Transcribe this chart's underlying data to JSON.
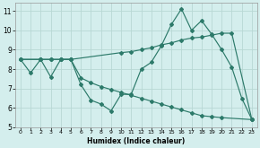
{
  "xlabel": "Humidex (Indice chaleur)",
  "bg_color": "#d4eeed",
  "grid_color": "#b8d8d4",
  "line_color": "#2d7a6a",
  "xlim": [
    -0.5,
    23.5
  ],
  "ylim": [
    5,
    11.4
  ],
  "xticks": [
    0,
    1,
    2,
    3,
    4,
    5,
    6,
    7,
    8,
    9,
    10,
    11,
    12,
    13,
    14,
    15,
    16,
    17,
    18,
    19,
    20,
    21,
    22,
    23
  ],
  "yticks": [
    5,
    6,
    7,
    8,
    9,
    10,
    11
  ],
  "line1_x": [
    0,
    1,
    2,
    3,
    4,
    5,
    6,
    7,
    8,
    9,
    10,
    11,
    12,
    13,
    14,
    15,
    16,
    17,
    18,
    19,
    20,
    21,
    22,
    23
  ],
  "line1_y": [
    8.5,
    7.8,
    8.5,
    7.6,
    8.5,
    8.5,
    7.2,
    6.4,
    6.2,
    5.85,
    6.7,
    6.7,
    8.0,
    8.35,
    9.2,
    10.3,
    11.1,
    10.0,
    10.5,
    9.8,
    9.0,
    8.1,
    6.5,
    5.4
  ],
  "line2_x": [
    0,
    2,
    3,
    4,
    5,
    10,
    11,
    12,
    13,
    14,
    15,
    16,
    17,
    18,
    19,
    20,
    21,
    23
  ],
  "line2_y": [
    8.5,
    8.5,
    8.5,
    8.5,
    8.5,
    8.85,
    8.9,
    9.0,
    9.1,
    9.25,
    9.35,
    9.5,
    9.6,
    9.65,
    9.75,
    9.85,
    9.85,
    5.4
  ],
  "line3_x": [
    0,
    2,
    3,
    4,
    5,
    6,
    7,
    8,
    9,
    10,
    11,
    12,
    13,
    14,
    15,
    16,
    17,
    18,
    19,
    20,
    23
  ],
  "line3_y": [
    8.5,
    8.5,
    8.5,
    8.5,
    8.5,
    7.55,
    7.3,
    7.1,
    6.95,
    6.8,
    6.65,
    6.5,
    6.35,
    6.2,
    6.05,
    5.9,
    5.75,
    5.6,
    5.55,
    5.5,
    5.4
  ]
}
